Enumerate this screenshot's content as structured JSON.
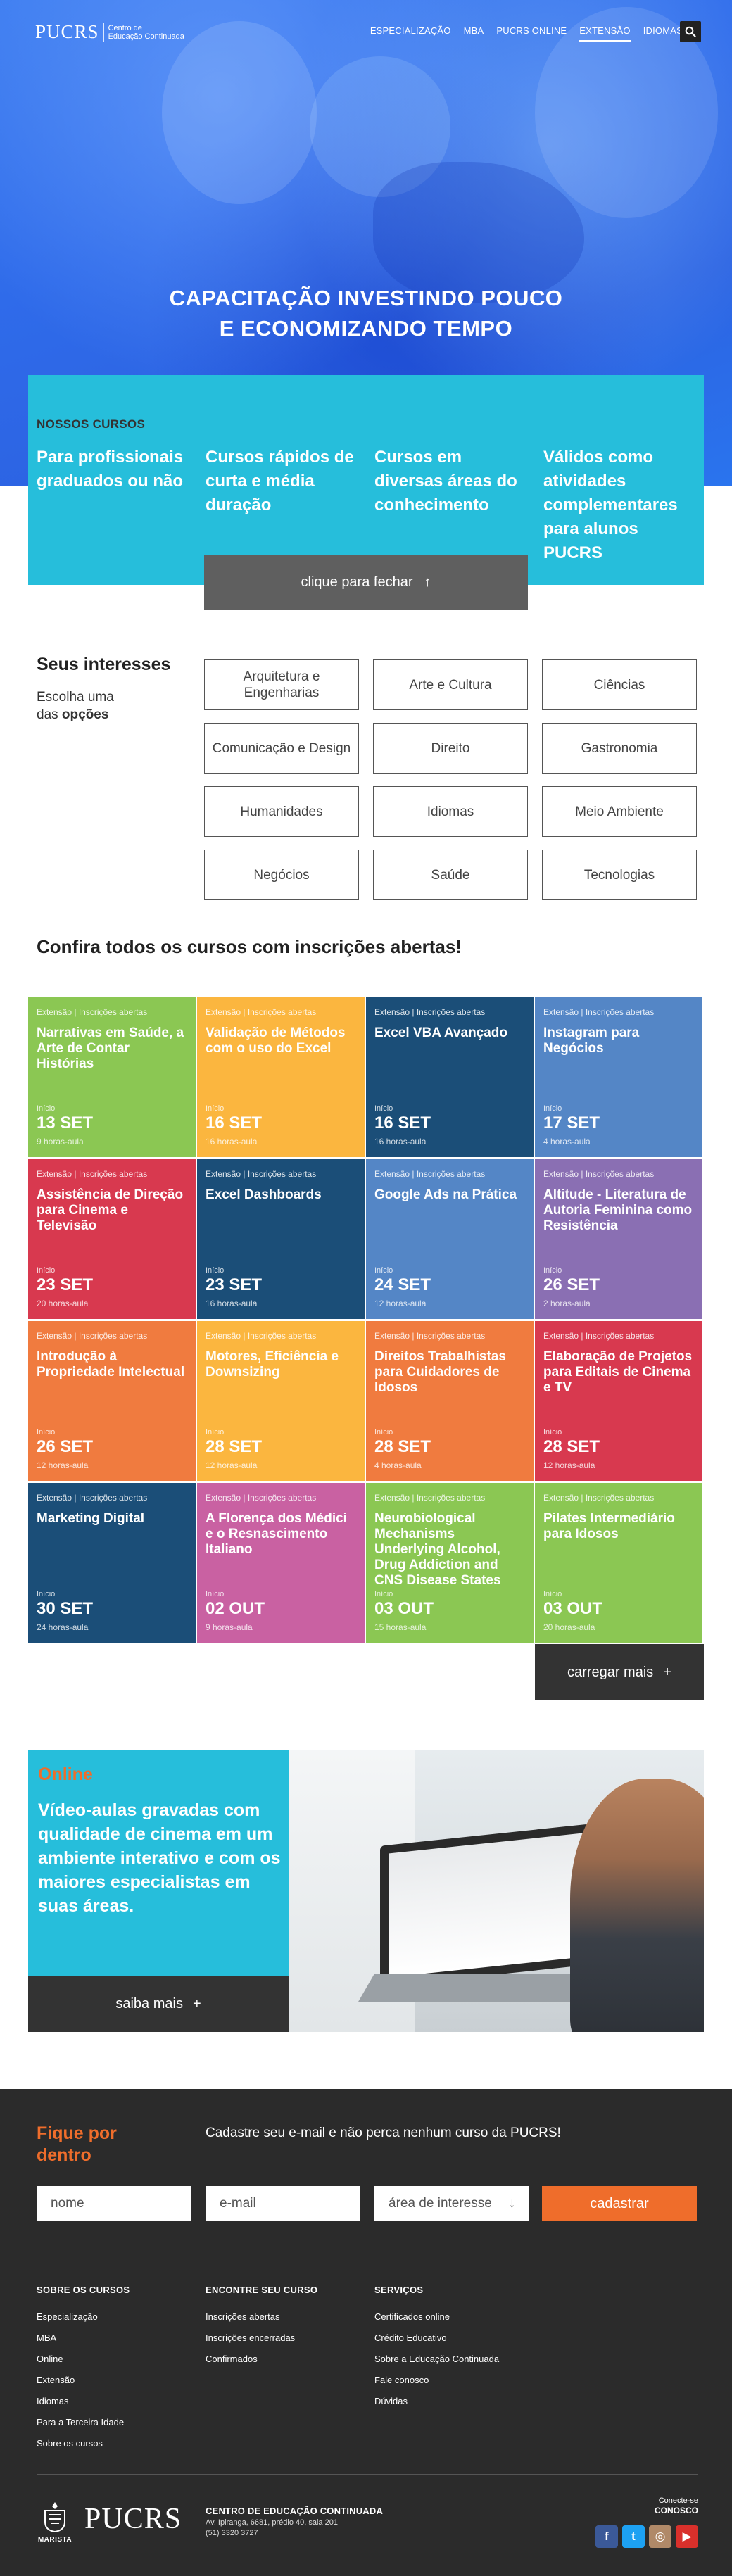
{
  "header": {
    "logo_brand": "PUCRS",
    "logo_sub_1": "Centro de",
    "logo_sub_2": "Educação Continuada",
    "nav": [
      "ESPECIALIZAÇÃO",
      "MBA",
      "PUCRS ONLINE",
      "EXTENSÃO",
      "IDIOMAS"
    ],
    "active_nav": "EXTENSÃO",
    "search_icon": "search-icon"
  },
  "hero": {
    "title_line1": "CAPACITAÇÃO INVESTINDO POUCO",
    "title_line2": "E ECONOMIZANDO TEMPO"
  },
  "courses_box": {
    "label": "NOSSOS CURSOS",
    "columns": [
      "Para profissionais graduados ou não",
      "Cursos rápidos de curta e média duração",
      "Cursos em diversas áreas do conhecimento",
      "Válidos como atividades complementares para alunos PUCRS"
    ],
    "close_label": "clique para fechar",
    "close_icon": "↑"
  },
  "interests": {
    "title": "Seus interesses",
    "sub_1": "Escolha uma",
    "sub_2": "das ",
    "sub_bold": "opções",
    "chips": [
      "Arquitetura e Engenharias",
      "Arte e Cultura",
      "Ciências",
      "Comunicação e Design",
      "Direito",
      "Gastronomia",
      "Humanidades",
      "Idiomas",
      "Meio Ambiente",
      "Negócios",
      "Saúde",
      "Tecnologias"
    ]
  },
  "grid": {
    "title": "Confira todos os cursos com inscrições abertas!",
    "start_label": "Início",
    "cards": [
      {
        "tag": "Extensão | Inscrições abertas",
        "title": "Narrativas em Saúde, a Arte de Contar Histórias",
        "date": "13 SET",
        "hours": "9 horas-aula",
        "color": "#8bc753"
      },
      {
        "tag": "Extensão | Inscrições abertas",
        "title": "Validação de Métodos com o uso do Excel",
        "date": "16 SET",
        "hours": "16 horas-aula",
        "color": "#fbb63f"
      },
      {
        "tag": "Extensão | Inscrições abertas",
        "title": "Excel VBA Avançado",
        "date": "16 SET",
        "hours": "16 horas-aula",
        "color": "#1b4e78"
      },
      {
        "tag": "Extensão | Inscrições abertas",
        "title": "Instagram para Negócios",
        "date": "17 SET",
        "hours": "4 horas-aula",
        "color": "#5486c6"
      },
      {
        "tag": "Extensão | Inscrições abertas",
        "title": "Assistência de Direção para Cinema e Televisão",
        "date": "23 SET",
        "hours": "20 horas-aula",
        "color": "#d8394f"
      },
      {
        "tag": "Extensão | Inscrições abertas",
        "title": "Excel Dashboards",
        "date": "23 SET",
        "hours": "16 horas-aula",
        "color": "#1b4e78"
      },
      {
        "tag": "Extensão | Inscrições abertas",
        "title": "Google Ads na Prática",
        "date": "24 SET",
        "hours": "12 horas-aula",
        "color": "#5486c6"
      },
      {
        "tag": "Extensão | Inscrições abertas",
        "title": "Altitude - Literatura de Autoria Feminina como Resistência",
        "date": "26 SET",
        "hours": "2 horas-aula",
        "color": "#8a6fb3"
      },
      {
        "tag": "Extensão | Inscrições abertas",
        "title": "Introdução à Propriedade Intelectual",
        "date": "26 SET",
        "hours": "12 horas-aula",
        "color": "#f07b3f"
      },
      {
        "tag": "Extensão | Inscrições abertas",
        "title": "Motores, Eficiência e Downsizing",
        "date": "28 SET",
        "hours": "12 horas-aula",
        "color": "#fbb63f"
      },
      {
        "tag": "Extensão | Inscrições abertas",
        "title": "Direitos Trabalhistas para Cuidadores de Idosos",
        "date": "28 SET",
        "hours": "4 horas-aula",
        "color": "#f07b3f"
      },
      {
        "tag": "Extensão | Inscrições abertas",
        "title": "Elaboração de Projetos para Editais de Cinema e TV",
        "date": "28 SET",
        "hours": "12 horas-aula",
        "color": "#d8394f"
      },
      {
        "tag": "Extensão | Inscrições abertas",
        "title": "Marketing Digital",
        "date": "30 SET",
        "hours": "24 horas-aula",
        "color": "#1b4e78"
      },
      {
        "tag": "Extensão | Inscrições abertas",
        "title": "A Florença dos Médici e o Resnascimento Italiano",
        "date": "02 OUT",
        "hours": "9 horas-aula",
        "color": "#c961a2"
      },
      {
        "tag": "Extensão | Inscrições abertas",
        "title": "Neurobiological Mechanisms Underlying Alcohol, Drug Addiction and CNS Disease States",
        "date": "03 OUT",
        "hours": "15 horas-aula",
        "color": "#8bc753"
      },
      {
        "tag": "Extensão | Inscrições abertas",
        "title": "Pilates Intermediário para Idosos",
        "date": "03 OUT",
        "hours": "20 horas-aula",
        "color": "#8bc753"
      }
    ],
    "load_more_label": "carregar mais",
    "load_more_icon": "+"
  },
  "online": {
    "kicker": "Online",
    "text": "Vídeo-aulas gravadas com qualidade de cinema em um ambiente interativo e com os maiores especialistas em suas áreas.",
    "button_label": "saiba mais",
    "button_icon": "+"
  },
  "footer": {
    "newsletter_title_1": "Fique por",
    "newsletter_title_2": "dentro",
    "newsletter_text": "Cadastre seu e-mail e não perca nenhum curso da PUCRS!",
    "name_placeholder": "nome",
    "email_placeholder": "e-mail",
    "area_placeholder": "área de interesse",
    "area_icon": "↓",
    "submit_label": "cadastrar",
    "columns": [
      {
        "title": "SOBRE OS CURSOS",
        "links": [
          "Especialização",
          "MBA",
          "Online",
          "Extensão",
          "Idiomas",
          "Para a Terceira Idade",
          "Sobre os cursos"
        ]
      },
      {
        "title": "ENCONTRE SEU CURSO",
        "links": [
          "Inscrições abertas",
          "Inscrições encerradas",
          "Confirmados"
        ]
      },
      {
        "title": "SERVIÇOS",
        "links": [
          "Certificados online",
          "Crédito Educativo",
          "Sobre a Educação Continuada",
          "Fale conosco",
          "Dúvidas"
        ]
      }
    ],
    "seal_label": "MARISTA",
    "brand": "PUCRS",
    "addr_title": "CENTRO DE EDUCAÇÃO CONTINUADA",
    "addr_line1": "Av. Ipiranga, 6681, prédio 40, sala 201",
    "addr_line2": "(51) 3320 3727",
    "connect_1": "Conecte-se",
    "connect_2": "CONOSCO",
    "socials": [
      {
        "name": "facebook-icon",
        "glyph": "f",
        "color": "#3b5998"
      },
      {
        "name": "twitter-icon",
        "glyph": "t",
        "color": "#1da1f2"
      },
      {
        "name": "instagram-icon",
        "glyph": "◎",
        "color": "#b08968"
      },
      {
        "name": "youtube-icon",
        "glyph": "▶",
        "color": "#d9302b"
      }
    ]
  }
}
